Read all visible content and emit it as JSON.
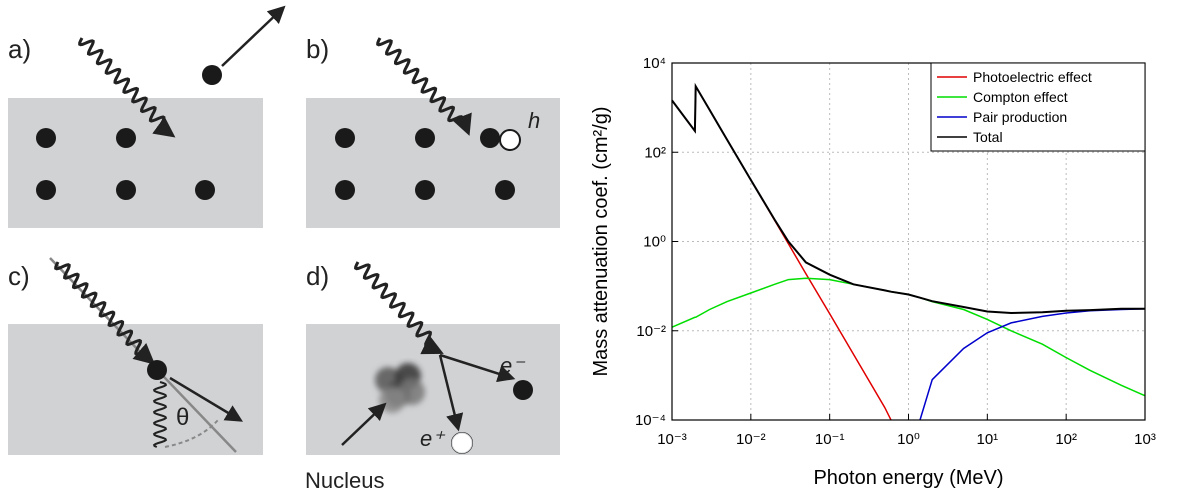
{
  "diagram": {
    "panel_labels": [
      "a)",
      "b)",
      "c)",
      "d)"
    ],
    "hole_label": "h",
    "angle_label": "θ",
    "electron_label": "e⁻",
    "positron_label": "e⁺",
    "nucleus_label": "Nucleus"
  },
  "chart_data": {
    "type": "line",
    "xlabel": "Photon energy (MeV)",
    "ylabel": "Mass attenuation coef. (cm²/g)",
    "xscale": "log",
    "yscale": "log",
    "grid": true,
    "legend": "upper right",
    "xlim": [
      0.001,
      1000
    ],
    "ylim": [
      0.0001,
      10000
    ],
    "xticks": [
      {
        "value": 0.001,
        "label": "10⁻³"
      },
      {
        "value": 0.01,
        "label": "10⁻²"
      },
      {
        "value": 0.1,
        "label": "10⁻¹"
      },
      {
        "value": 1,
        "label": "10⁰"
      },
      {
        "value": 10,
        "label": "10¹"
      },
      {
        "value": 100,
        "label": "10²"
      },
      {
        "value": 1000,
        "label": "10³"
      }
    ],
    "yticks": [
      {
        "value": 0.0001,
        "label": "10⁻⁴"
      },
      {
        "value": 0.01,
        "label": "10⁻²"
      },
      {
        "value": 1,
        "label": "10⁰"
      },
      {
        "value": 100,
        "label": "10²"
      },
      {
        "value": 10000,
        "label": "10⁴"
      }
    ],
    "x": [
      0.001,
      0.00195,
      0.002,
      0.003,
      0.005,
      0.01,
      0.02,
      0.03,
      0.05,
      0.1,
      0.2,
      0.5,
      0.6,
      1.0,
      1.4,
      2,
      5,
      10,
      20,
      50,
      100,
      200,
      500,
      1000
    ],
    "series": [
      {
        "name": "Photoelectric effect",
        "color": "#e00000",
        "values": [
          1450,
          300,
          3000,
          890,
          190,
          24,
          3,
          0.89,
          0.19,
          0.024,
          0.003,
          0.00019,
          0.0001,
          null,
          null,
          null,
          null,
          null,
          null,
          null,
          null,
          null,
          null,
          null
        ]
      },
      {
        "name": "Compton effect",
        "color": "#00dd00",
        "values": [
          0.012,
          0.02,
          0.02,
          0.03,
          0.045,
          0.07,
          0.11,
          0.14,
          0.15,
          0.14,
          0.11,
          0.08,
          0.075,
          0.065,
          0.055,
          0.045,
          0.03,
          0.018,
          0.01,
          0.005,
          0.0025,
          0.0013,
          0.0006,
          0.00035
        ]
      },
      {
        "name": "Pair production",
        "color": "#0000cc",
        "values": [
          null,
          null,
          null,
          null,
          null,
          null,
          null,
          null,
          null,
          null,
          null,
          null,
          null,
          null,
          0.0001,
          0.0008,
          0.004,
          0.009,
          0.015,
          0.021,
          0.025,
          0.028,
          0.03,
          0.031
        ]
      },
      {
        "name": "Total",
        "color": "#000000",
        "values": [
          1450,
          300,
          3000,
          890,
          190,
          24,
          3.1,
          1.0,
          0.34,
          0.18,
          0.11,
          0.08,
          0.075,
          0.065,
          0.055,
          0.046,
          0.034,
          0.027,
          0.025,
          0.026,
          0.028,
          0.029,
          0.031,
          0.031
        ]
      }
    ]
  }
}
